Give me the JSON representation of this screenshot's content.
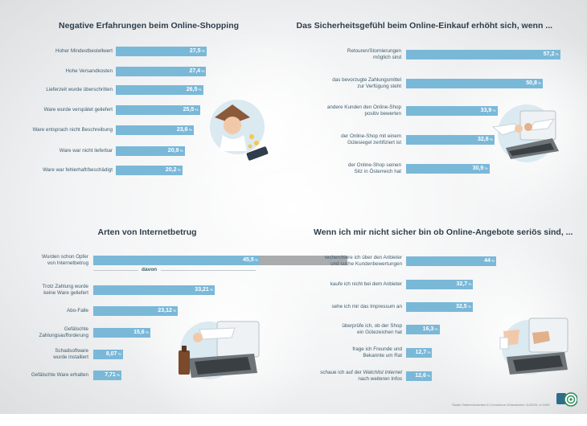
{
  "chart_data": [
    {
      "type": "bar",
      "title": "Negative Erfahrungen beim Online-Shopping",
      "categories": [
        "Hoher Mindestbestellwert",
        "Hohe Versandkosten",
        "Lieferzeit wurde überschritten",
        "Ware wurde verspätet geliefert",
        "Ware entsprach nicht Beschreibung",
        "Ware war nicht lieferbar",
        "Ware war fehlerhaft/beschädigt"
      ],
      "values": [
        27.5,
        27.4,
        26.5,
        25.5,
        23.6,
        20.9,
        20.2
      ],
      "value_labels": [
        "27,5",
        "27,4",
        "26,5",
        "25,5",
        "23,6",
        "20,9",
        "20,2"
      ],
      "unit": "%",
      "color": "#7ab8d8"
    },
    {
      "type": "bar",
      "title": "Das Sicherheitsgefühl beim Online-Einkauf erhöht sich, wenn ...",
      "categories": [
        [
          "Retouren/Stornierungen",
          "möglich sind"
        ],
        [
          "das bevorzugte Zahlungsmittel",
          "zur Verfügung steht"
        ],
        [
          "andere Kunden den Online-Shop",
          "positiv bewerten"
        ],
        [
          "der Online-Shop mit einem",
          "Gütesiegel zertifiziert ist"
        ],
        [
          "der Online-Shop seinen",
          "Sitz in Österreich hat"
        ]
      ],
      "values": [
        57.2,
        50.8,
        33.9,
        32.8,
        30.9
      ],
      "value_labels": [
        "57,2",
        "50,8",
        "33,9",
        "32,8",
        "30,9"
      ],
      "unit": "%",
      "color": "#7ab8d8"
    },
    {
      "type": "bar",
      "title": "Arten von Internetbetrug",
      "separator": "davon",
      "categories": [
        [
          "Wurden schon Opfer",
          "von Internetbetrug"
        ],
        [
          "Trotz Zahlung wurde",
          "keine Ware geliefert"
        ],
        [
          "Abo-Falle"
        ],
        [
          "Gefälschte",
          "Zahlungsaufforderung"
        ],
        [
          "Schadsoftware",
          "wurde installiert"
        ],
        [
          "Gefälschte Ware erhalten"
        ]
      ],
      "values": [
        45.5,
        33.21,
        23.12,
        15.6,
        8.07,
        7.71
      ],
      "value_labels": [
        "45,5",
        "33,21",
        "23,12",
        "15,6",
        "8,07",
        "7,71"
      ],
      "unit": "%",
      "color": "#7ab8d8",
      "remainder_color": "#a9abad"
    },
    {
      "type": "bar",
      "title": "Wenn ich mir nicht sicher bin ob Online-Angebote seriös sind, ...",
      "categories": [
        [
          "recherchiere ich über den Anbieter",
          "und suche Kundenbewertungen"
        ],
        [
          "kaufe ich nicht bei dem Anbieter"
        ],
        [
          "sehe ich mir das Impressum an"
        ],
        [
          "überprüfe ich, ob der Shop",
          "ein Gütezeichen hat"
        ],
        [
          "frage ich Freunde und",
          "Bekannte um Rat"
        ],
        [
          "schaue ich auf der Watchlist Internet",
          "nach weiteren Infos"
        ]
      ],
      "values": [
        44,
        32.7,
        32.5,
        16.3,
        12.7,
        12.6
      ],
      "value_labels": [
        "44",
        "32,7",
        "32,5",
        "16,3",
        "12,7",
        "12,6"
      ],
      "unit": "%",
      "color": "#7ab8d8"
    }
  ],
  "source": "Studie Österreichisches E-Commerce-Gütezeichen 11/2020, n=1000",
  "icons": [
    "shopping-person-icon",
    "handshake-laptop-icon",
    "fraud-laptop-icon",
    "thumbs-up-laptop-icon",
    "logo-icon"
  ]
}
